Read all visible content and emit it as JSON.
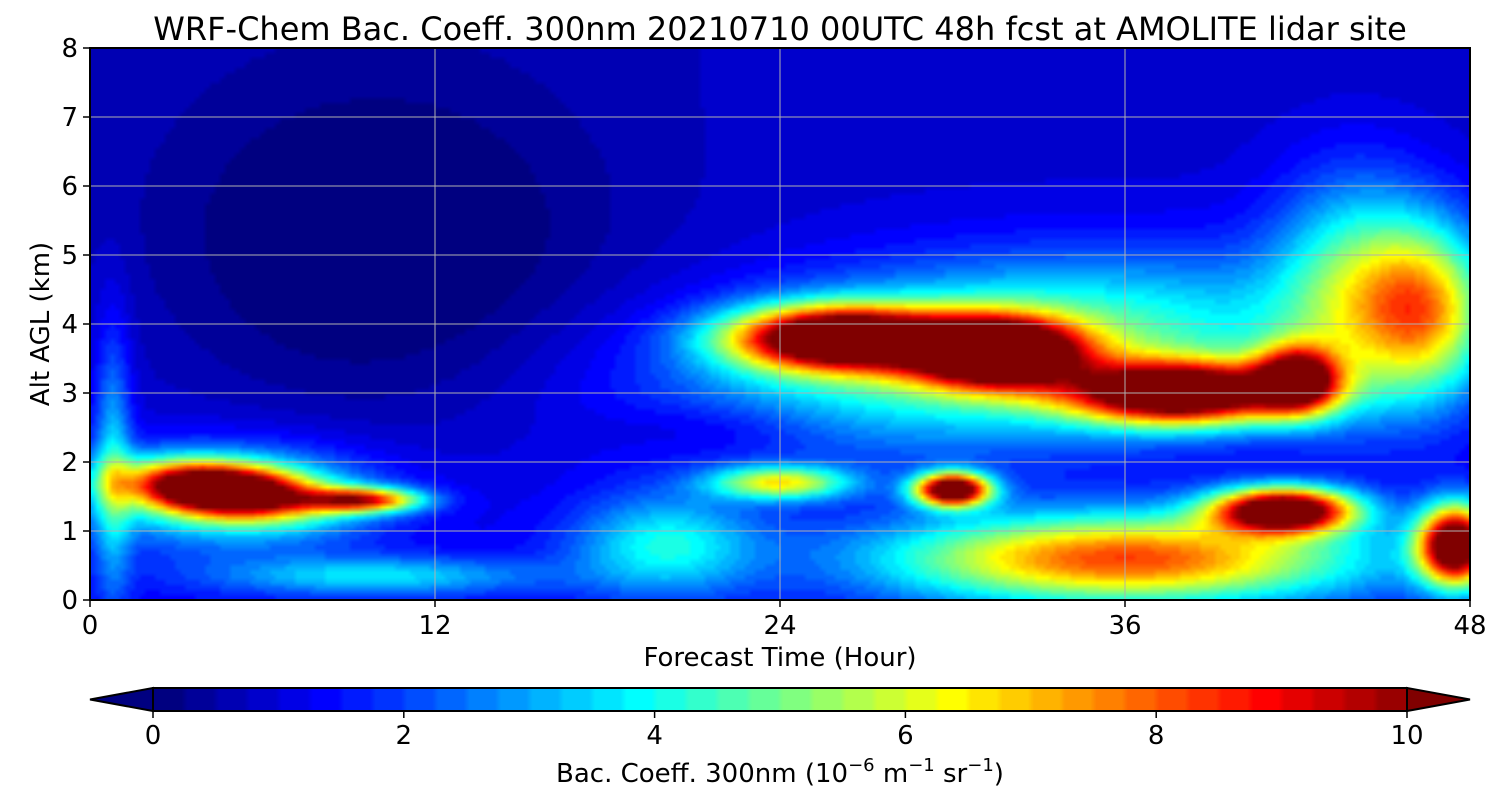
{
  "chart_data": {
    "type": "heatmap",
    "title": "WRF-Chem Bac. Coeff. 300nm  20210710 00UTC 48h fcst at AMOLITE lidar site",
    "xlabel": "Forecast Time (Hour)",
    "ylabel": "Alt AGL (km)",
    "xlim": [
      0,
      48
    ],
    "ylim": [
      0,
      8
    ],
    "x_ticks": [
      "0",
      "12",
      "24",
      "36",
      "48"
    ],
    "y_ticks": [
      "0",
      "1",
      "2",
      "3",
      "4",
      "5",
      "6",
      "7",
      "8"
    ],
    "grid": true,
    "colormap": "jet",
    "colorbar": {
      "label_main": "Bac. Coeff. 300nm  (10",
      "label_exp1": "−6",
      "label_mid": " m",
      "label_exp2": "−1",
      "label_mid2": " sr",
      "label_exp3": "−1",
      "label_end": ")",
      "range": [
        0,
        10
      ],
      "ticks": [
        "0",
        "2",
        "4",
        "6",
        "8",
        "10"
      ],
      "extend": "both",
      "orientation": "horizontal"
    },
    "features": [
      {
        "name": "low-layer plume",
        "x": 4.5,
        "y": 1.6,
        "sx": 3.8,
        "sy": 0.45,
        "value": 11,
        "rot": -0.03
      },
      {
        "name": "low-layer plume tail",
        "x": 9.5,
        "y": 1.45,
        "sx": 2.5,
        "sy": 0.22,
        "value": 7
      },
      {
        "name": "low-layer envelope",
        "x": 5,
        "y": 1.5,
        "sx": 6,
        "sy": 0.9,
        "value": 3.5
      },
      {
        "name": "near-surface band",
        "x": 10,
        "y": 0.35,
        "sx": 7,
        "sy": 0.35,
        "value": 2.4
      },
      {
        "name": "mid-level envelope",
        "x": 32,
        "y": 3.6,
        "sx": 13,
        "sy": 1.5,
        "value": 4.5,
        "rot": 0.03
      },
      {
        "name": "upper aerosol layer west",
        "x": 26,
        "y": 3.8,
        "sx": 4.5,
        "sy": 0.55,
        "value": 11
      },
      {
        "name": "upper aerosol layer center",
        "x": 31.5,
        "y": 3.6,
        "sx": 3.5,
        "sy": 0.6,
        "value": 11
      },
      {
        "name": "upper aerosol layer east",
        "x": 38,
        "y": 3.0,
        "sx": 4.8,
        "sy": 0.55,
        "value": 11
      },
      {
        "name": "upper layer edge",
        "x": 42,
        "y": 3.2,
        "sx": 1.8,
        "sy": 0.6,
        "value": 8
      },
      {
        "name": "boundary layer plume",
        "x": 30,
        "y": 1.6,
        "sx": 1.6,
        "sy": 0.3,
        "value": 11
      },
      {
        "name": "boundary layer moderate",
        "x": 24,
        "y": 1.7,
        "sx": 3,
        "sy": 0.3,
        "value": 5
      },
      {
        "name": "surface-high region",
        "x": 36,
        "y": 0.6,
        "sx": 10,
        "sy": 0.8,
        "value": 7
      },
      {
        "name": "east low plume",
        "x": 41.5,
        "y": 1.3,
        "sx": 3,
        "sy": 0.4,
        "value": 11
      },
      {
        "name": "east surface plume",
        "x": 47.5,
        "y": 0.8,
        "sx": 1.6,
        "sy": 0.7,
        "value": 11
      },
      {
        "name": "east upper moderate",
        "x": 46.5,
        "y": 4.2,
        "sx": 2.8,
        "sy": 1.5,
        "value": 5
      },
      {
        "name": "east upper envelope",
        "x": 44,
        "y": 4.5,
        "sx": 3.5,
        "sy": 2.0,
        "value": 3.5
      },
      {
        "name": "mid-field moderate",
        "x": 20,
        "y": 0.8,
        "sx": 4,
        "sy": 0.9,
        "value": 2.8
      },
      {
        "name": "west edge column",
        "x": 0.8,
        "y": 2.0,
        "sx": 0.8,
        "sy": 2.5,
        "value": 2.2
      },
      {
        "name": "upper clear air",
        "x": 10,
        "y": 5.0,
        "sx": 11,
        "sy": 3.5,
        "value": -1.2
      },
      {
        "name": "mid clear air",
        "x": 22,
        "y": 2.5,
        "sx": 5,
        "sy": 0.5,
        "value": -0.7
      }
    ]
  }
}
